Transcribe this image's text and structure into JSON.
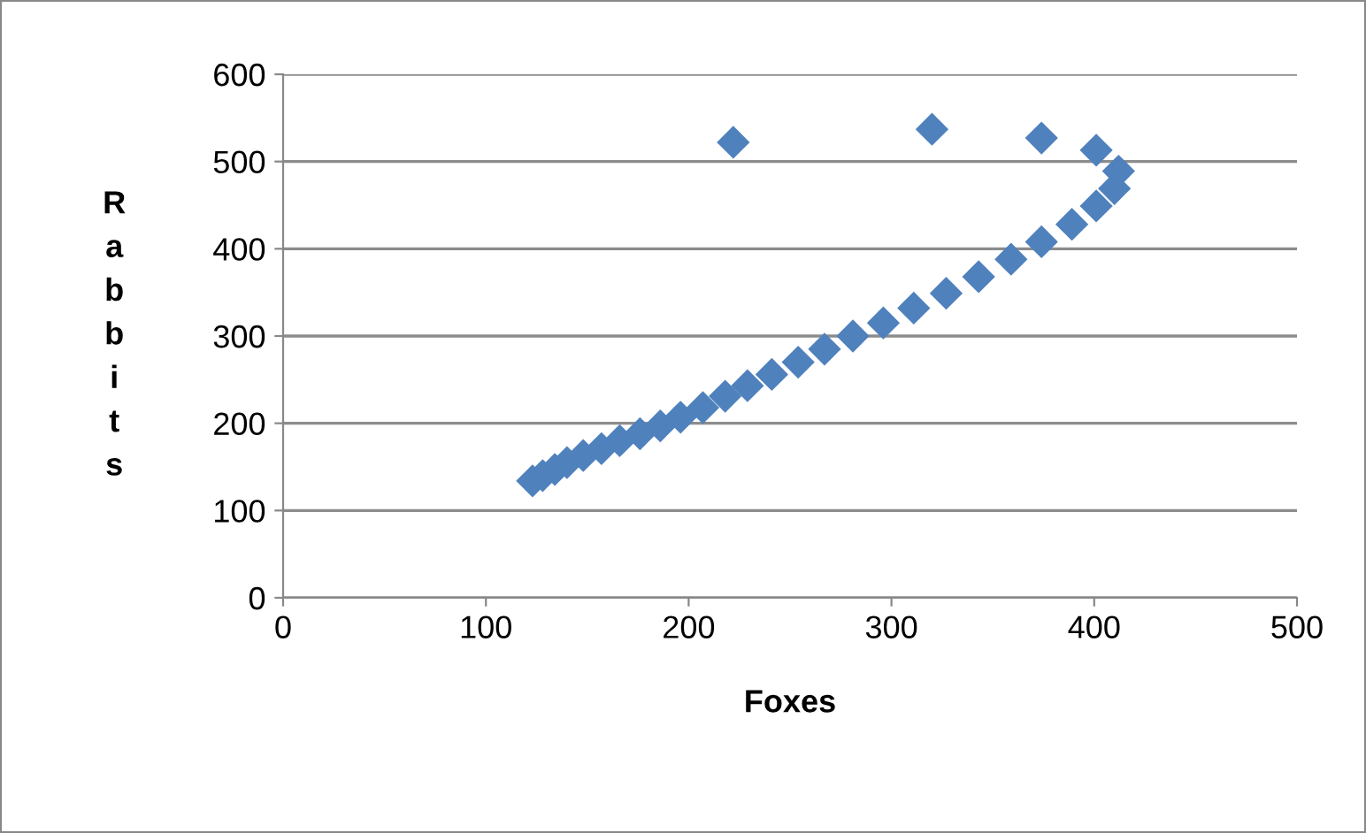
{
  "chart_data": {
    "type": "scatter",
    "xlabel": "Foxes",
    "ylabel": "R\na\nb\nb\ni\nt\ns",
    "x": [
      123,
      128,
      134,
      140,
      148,
      157,
      166,
      176,
      186,
      196,
      207,
      218,
      229,
      241,
      254,
      267,
      281,
      296,
      311,
      327,
      343,
      359,
      374,
      389,
      401,
      410,
      412,
      401,
      374,
      320,
      222
    ],
    "values": [
      134,
      140,
      147,
      155,
      163,
      171,
      180,
      188,
      197,
      207,
      218,
      231,
      243,
      256,
      270,
      285,
      300,
      315,
      332,
      349,
      368,
      388,
      408,
      428,
      449,
      469,
      489,
      513,
      527,
      537,
      522
    ],
    "color": "#4f81bd",
    "marker": "diamond",
    "xlim": [
      0,
      500
    ],
    "ylim": [
      0,
      600
    ],
    "xticks": [
      0,
      100,
      200,
      300,
      400,
      500
    ],
    "yticks": [
      0,
      100,
      200,
      300,
      400,
      500,
      600
    ],
    "grid": "y",
    "legend": false
  }
}
